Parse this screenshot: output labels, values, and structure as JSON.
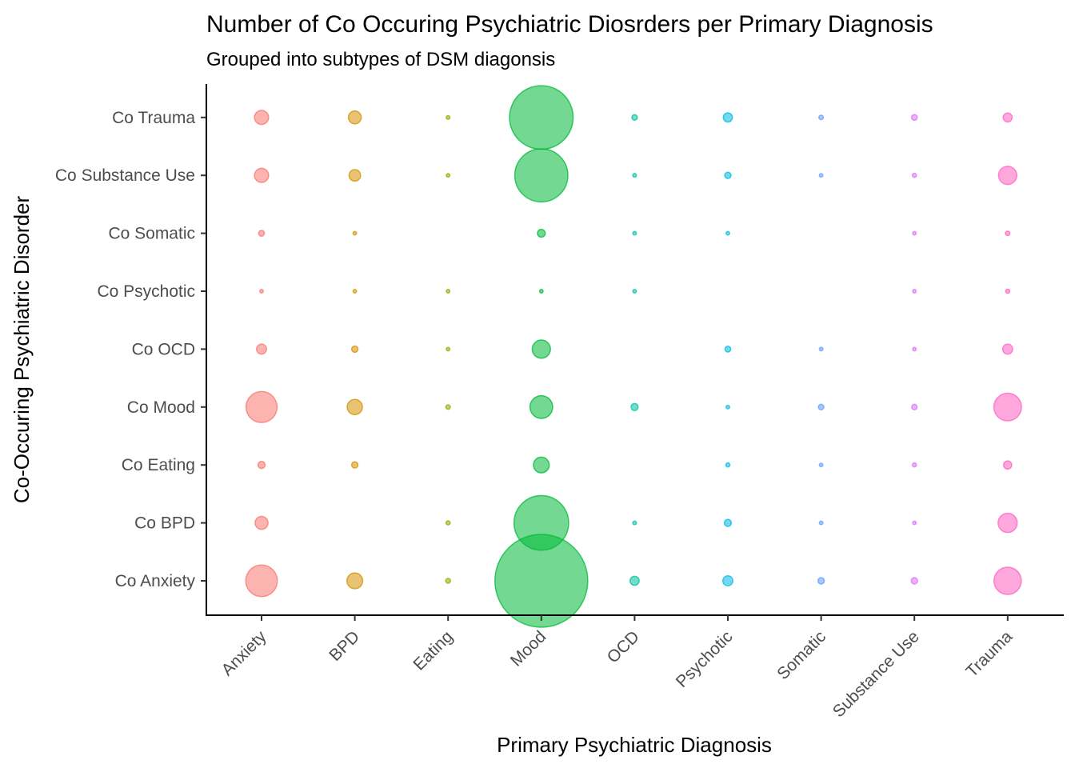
{
  "chart_data": {
    "type": "scatter",
    "title": "Number of Co Occuring Psychiatric Diosrders per Primary Diagnosis",
    "subtitle": "Grouped into subtypes of DSM diagonsis",
    "xlabel": "Primary Psychiatric Diagnosis",
    "ylabel": "Co-Occuring Psychiatric Disorder",
    "x_categories": [
      "Anxiety",
      "BPD",
      "Eating",
      "Mood",
      "OCD",
      "Psychotic",
      "Somatic",
      "Substance Use",
      "Trauma"
    ],
    "y_categories": [
      "Co Anxiety",
      "Co BPD",
      "Co Eating",
      "Co Mood",
      "Co OCD",
      "Co Psychotic",
      "Co Somatic",
      "Co Substance Use",
      "Co Trauma"
    ],
    "size_encoding": "point area proportional to count",
    "grid": false,
    "legend": "none",
    "colors": {
      "Anxiety": "#F8766D",
      "BPD": "#D39200",
      "Eating": "#93AA00",
      "Mood": "#00BA38",
      "OCD": "#00C19F",
      "Psychotic": "#00B9E3",
      "Somatic": "#619CFF",
      "Substance Use": "#DB72FB",
      "Trauma": "#FF61C3"
    },
    "points": [
      {
        "x": "Anxiety",
        "y": "Co Anxiety",
        "value": 300
      },
      {
        "x": "Anxiety",
        "y": "Co BPD",
        "value": 50
      },
      {
        "x": "Anxiety",
        "y": "Co Eating",
        "value": 15
      },
      {
        "x": "Anxiety",
        "y": "Co Mood",
        "value": 290
      },
      {
        "x": "Anxiety",
        "y": "Co OCD",
        "value": 30
      },
      {
        "x": "Anxiety",
        "y": "Co Psychotic",
        "value": 3
      },
      {
        "x": "Anxiety",
        "y": "Co Somatic",
        "value": 10
      },
      {
        "x": "Anxiety",
        "y": "Co Substance Use",
        "value": 60
      },
      {
        "x": "Anxiety",
        "y": "Co Trauma",
        "value": 60
      },
      {
        "x": "BPD",
        "y": "Co Anxiety",
        "value": 75
      },
      {
        "x": "BPD",
        "y": "Co Eating",
        "value": 12
      },
      {
        "x": "BPD",
        "y": "Co Mood",
        "value": 70
      },
      {
        "x": "BPD",
        "y": "Co OCD",
        "value": 12
      },
      {
        "x": "BPD",
        "y": "Co Psychotic",
        "value": 2
      },
      {
        "x": "BPD",
        "y": "Co Somatic",
        "value": 3
      },
      {
        "x": "BPD",
        "y": "Co Substance Use",
        "value": 40
      },
      {
        "x": "BPD",
        "y": "Co Trauma",
        "value": 50
      },
      {
        "x": "Eating",
        "y": "Co Anxiety",
        "value": 7
      },
      {
        "x": "Eating",
        "y": "Co BPD",
        "value": 5
      },
      {
        "x": "Eating",
        "y": "Co Mood",
        "value": 6
      },
      {
        "x": "Eating",
        "y": "Co OCD",
        "value": 2
      },
      {
        "x": "Eating",
        "y": "Co Psychotic",
        "value": 2
      },
      {
        "x": "Eating",
        "y": "Co Substance Use",
        "value": 3
      },
      {
        "x": "Eating",
        "y": "Co Trauma",
        "value": 4
      },
      {
        "x": "Mood",
        "y": "Co Anxiety",
        "value": 2600
      },
      {
        "x": "Mood",
        "y": "Co BPD",
        "value": 900
      },
      {
        "x": "Mood",
        "y": "Co Eating",
        "value": 75
      },
      {
        "x": "Mood",
        "y": "Co Mood",
        "value": 155
      },
      {
        "x": "Mood",
        "y": "Co OCD",
        "value": 100
      },
      {
        "x": "Mood",
        "y": "Co Psychotic",
        "value": 3
      },
      {
        "x": "Mood",
        "y": "Co Somatic",
        "value": 18
      },
      {
        "x": "Mood",
        "y": "Co Substance Use",
        "value": 850
      },
      {
        "x": "Mood",
        "y": "Co Trauma",
        "value": 1220
      },
      {
        "x": "OCD",
        "y": "Co Anxiety",
        "value": 25
      },
      {
        "x": "OCD",
        "y": "Co BPD",
        "value": 4
      },
      {
        "x": "OCD",
        "y": "Co Mood",
        "value": 15
      },
      {
        "x": "OCD",
        "y": "Co Psychotic",
        "value": 2
      },
      {
        "x": "OCD",
        "y": "Co Somatic",
        "value": 3
      },
      {
        "x": "OCD",
        "y": "Co Substance Use",
        "value": 4
      },
      {
        "x": "OCD",
        "y": "Co Trauma",
        "value": 9
      },
      {
        "x": "Psychotic",
        "y": "Co Anxiety",
        "value": 30
      },
      {
        "x": "Psychotic",
        "y": "Co BPD",
        "value": 15
      },
      {
        "x": "Psychotic",
        "y": "Co Eating",
        "value": 5
      },
      {
        "x": "Psychotic",
        "y": "Co Mood",
        "value": 3
      },
      {
        "x": "Psychotic",
        "y": "Co OCD",
        "value": 10
      },
      {
        "x": "Psychotic",
        "y": "Co Somatic",
        "value": 2
      },
      {
        "x": "Psychotic",
        "y": "Co Substance Use",
        "value": 12
      },
      {
        "x": "Psychotic",
        "y": "Co Trauma",
        "value": 25
      },
      {
        "x": "Somatic",
        "y": "Co Anxiety",
        "value": 12
      },
      {
        "x": "Somatic",
        "y": "Co BPD",
        "value": 2
      },
      {
        "x": "Somatic",
        "y": "Co Eating",
        "value": 2
      },
      {
        "x": "Somatic",
        "y": "Co Mood",
        "value": 9
      },
      {
        "x": "Somatic",
        "y": "Co OCD",
        "value": 4
      },
      {
        "x": "Somatic",
        "y": "Co Substance Use",
        "value": 3
      },
      {
        "x": "Somatic",
        "y": "Co Trauma",
        "value": 6
      },
      {
        "x": "Substance Use",
        "y": "Co Anxiety",
        "value": 12
      },
      {
        "x": "Substance Use",
        "y": "Co BPD",
        "value": 3
      },
      {
        "x": "Substance Use",
        "y": "Co Eating",
        "value": 5
      },
      {
        "x": "Substance Use",
        "y": "Co Mood",
        "value": 9
      },
      {
        "x": "Substance Use",
        "y": "Co OCD",
        "value": 2
      },
      {
        "x": "Substance Use",
        "y": "Co Psychotic",
        "value": 2
      },
      {
        "x": "Substance Use",
        "y": "Co Somatic",
        "value": 2
      },
      {
        "x": "Substance Use",
        "y": "Co Substance Use",
        "value": 5
      },
      {
        "x": "Substance Use",
        "y": "Co Trauma",
        "value": 10
      },
      {
        "x": "Trauma",
        "y": "Co Anxiety",
        "value": 225
      },
      {
        "x": "Trauma",
        "y": "Co BPD",
        "value": 110
      },
      {
        "x": "Trauma",
        "y": "Co Eating",
        "value": 20
      },
      {
        "x": "Trauma",
        "y": "Co Mood",
        "value": 230
      },
      {
        "x": "Trauma",
        "y": "Co OCD",
        "value": 30
      },
      {
        "x": "Trauma",
        "y": "Co Psychotic",
        "value": 5
      },
      {
        "x": "Trauma",
        "y": "Co Somatic",
        "value": 6
      },
      {
        "x": "Trauma",
        "y": "Co Substance Use",
        "value": 100
      },
      {
        "x": "Trauma",
        "y": "Co Trauma",
        "value": 24
      }
    ]
  }
}
